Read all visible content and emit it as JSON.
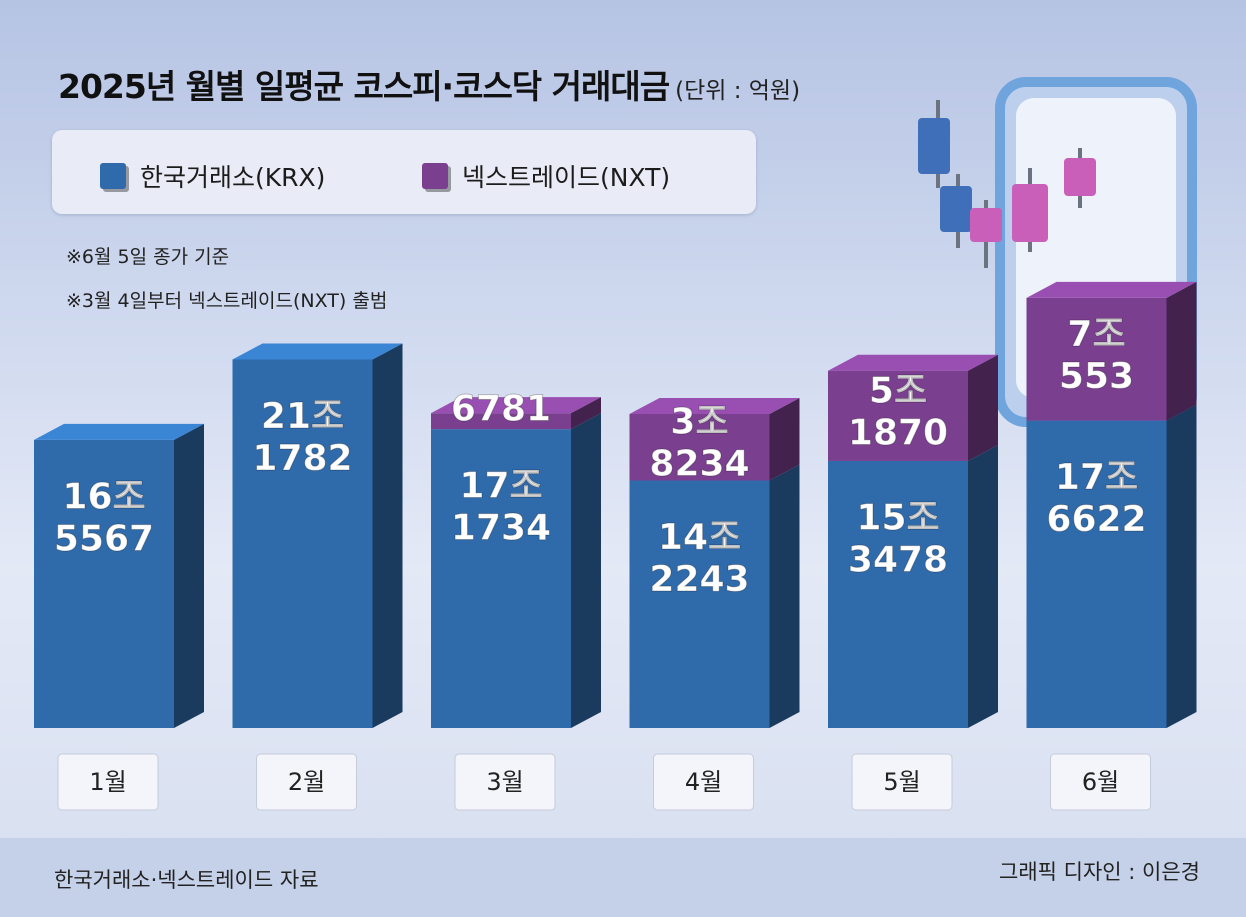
{
  "chart_data": {
    "type": "bar",
    "stacked": true,
    "title": "2025년 월별 일평균 코스피·코스닥 거래대금",
    "unit": "(단위 : 억원)",
    "categories": [
      "1월",
      "2월",
      "3월",
      "4월",
      "5월",
      "6월"
    ],
    "series": [
      {
        "name": "한국거래소(KRX)",
        "color": "#2f6aaa",
        "values": [
          165567,
          211782,
          171734,
          142243,
          153478,
          176622
        ],
        "labels": [
          [
            "16조",
            "5567"
          ],
          [
            "21조",
            "1782"
          ],
          [
            "17조",
            "1734"
          ],
          [
            "14조",
            "2243"
          ],
          [
            "15조",
            "3478"
          ],
          [
            "17조",
            "6622"
          ]
        ]
      },
      {
        "name": "넥스트레이드(NXT)",
        "color": "#7a3f8e",
        "values": [
          null,
          null,
          6781,
          38234,
          51870,
          70553
        ],
        "labels": [
          null,
          null,
          [
            "6781"
          ],
          [
            "3조",
            "8234"
          ],
          [
            "5조",
            "1870"
          ],
          [
            "7조",
            "553"
          ]
        ]
      }
    ],
    "legend": "top-left",
    "grid": false
  },
  "notes": [
    "※6월 5일 종가 기준",
    "※3월 4일부터 넥스트레이드(NXT) 출범"
  ],
  "source": "한국거래소·넥스트레이드 자료",
  "credit": "그래픽 디자인 : 이은경"
}
